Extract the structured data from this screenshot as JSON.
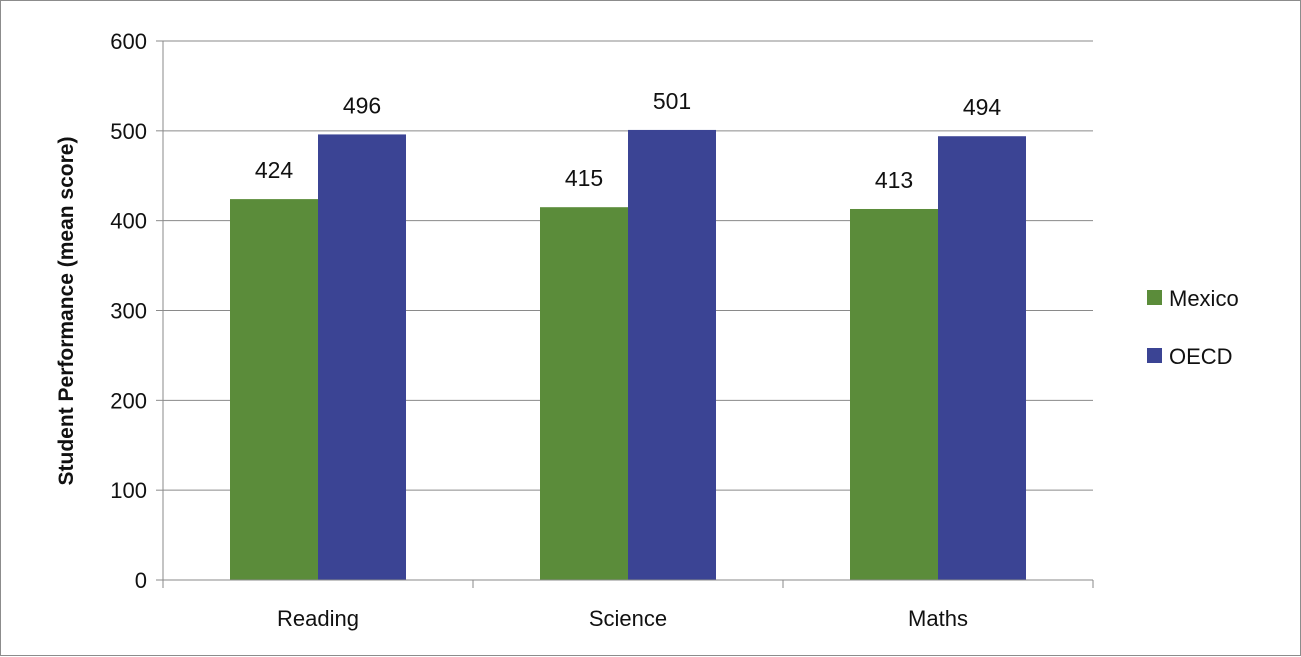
{
  "chart_data": {
    "type": "bar",
    "title": "",
    "xlabel": "",
    "ylabel": "Student Performance (mean score)",
    "categories": [
      "Reading",
      "Science",
      "Maths"
    ],
    "series": [
      {
        "name": "Mexico",
        "values": [
          424,
          415,
          413
        ],
        "color": "#5b8c3a"
      },
      {
        "name": "OECD",
        "values": [
          496,
          501,
          494
        ],
        "color": "#3b4494"
      }
    ],
    "ylim": [
      0,
      600
    ],
    "yticks": [
      "0",
      "100",
      "200",
      "300",
      "400",
      "500",
      "600"
    ],
    "grid": true,
    "data_labels": true,
    "legend_position": "right"
  }
}
